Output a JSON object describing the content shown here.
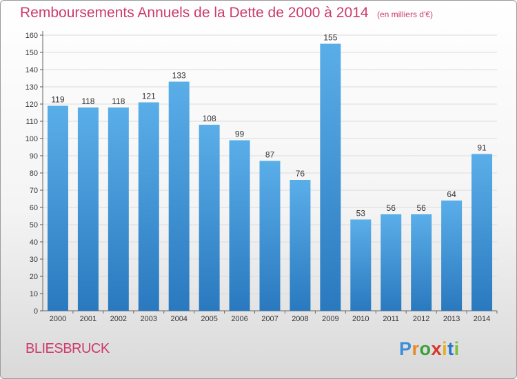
{
  "header": {
    "title": "Remboursements Annuels de la Dette de 2000 à 2014",
    "unit": "(en milliers d'€)"
  },
  "footer": {
    "commune": "BLIESBRUCK",
    "logo": [
      "P",
      "r",
      "o",
      "x",
      "i",
      "t",
      "i"
    ]
  },
  "colors": {
    "title": "#cc3b6b",
    "bar_top": "#5aaee8",
    "bar_bottom": "#2a79bf"
  },
  "chart_data": {
    "type": "bar",
    "categories": [
      "2000",
      "2001",
      "2002",
      "2003",
      "2004",
      "2005",
      "2006",
      "2007",
      "2008",
      "2009",
      "2010",
      "2011",
      "2012",
      "2013",
      "2014"
    ],
    "values": [
      119,
      118,
      118,
      121,
      133,
      108,
      99,
      87,
      76,
      155,
      53,
      56,
      56,
      64,
      91
    ],
    "ylim": [
      0,
      160
    ],
    "yticks": [
      0,
      10,
      20,
      30,
      40,
      50,
      60,
      70,
      80,
      90,
      100,
      110,
      120,
      130,
      140,
      150,
      160
    ],
    "grid": true,
    "xlabel": "",
    "ylabel": ""
  }
}
